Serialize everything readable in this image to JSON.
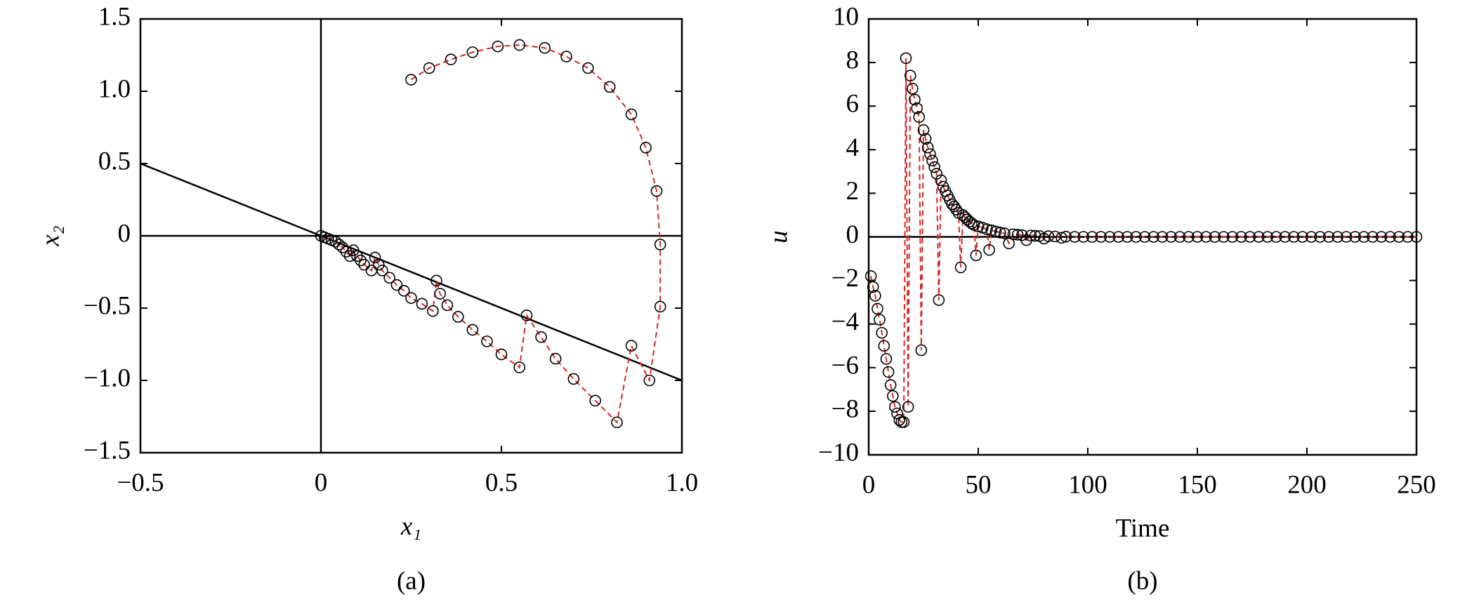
{
  "chart_data": [
    {
      "type": "scatter",
      "xlabel": "x₁",
      "ylabel": "x₂",
      "caption": "(a)",
      "xlim": [
        -0.5,
        1.0
      ],
      "ylim": [
        -1.5,
        1.5
      ],
      "xticks": [
        {
          "value": -0.5,
          "label": "−0.5"
        },
        0,
        0.5,
        {
          "value": 1.0,
          "label": "1.0"
        }
      ],
      "yticks": [
        {
          "value": -1.5,
          "label": "−1.5"
        },
        {
          "value": -1.0,
          "label": "−1.0"
        },
        {
          "value": -0.5,
          "label": "−0.5"
        },
        0,
        0.5,
        {
          "value": 1.0,
          "label": "1.0"
        },
        1.5
      ],
      "lines": [
        {
          "x": [
            -0.5,
            1.0
          ],
          "y": [
            0,
            0
          ]
        },
        {
          "x": [
            0,
            0
          ],
          "y": [
            -1.5,
            1.5
          ]
        },
        {
          "x": [
            -0.5,
            1.0
          ],
          "y": [
            0.5,
            -1.0
          ]
        }
      ],
      "series": [
        {
          "color": "#d62728",
          "x": [
            0.25,
            0.3,
            0.36,
            0.42,
            0.49,
            0.55,
            0.62,
            0.68,
            0.74,
            0.8,
            0.86,
            0.9,
            0.93,
            0.94,
            0.94,
            0.91,
            0.86,
            0.82,
            0.76,
            0.7,
            0.65,
            0.61,
            0.57,
            0.55,
            0.5,
            0.46,
            0.42,
            0.38,
            0.35,
            0.33,
            0.32,
            0.31,
            0.28,
            0.25,
            0.23,
            0.21,
            0.19,
            0.17,
            0.16,
            0.15,
            0.14,
            0.12,
            0.11,
            0.1,
            0.09,
            0.08,
            0.07,
            0.06,
            0.05,
            0.04,
            0.03,
            0.02,
            0.01,
            0
          ],
          "values": [
            1.08,
            1.16,
            1.22,
            1.27,
            1.31,
            1.32,
            1.3,
            1.24,
            1.16,
            1.03,
            0.84,
            0.61,
            0.31,
            -0.06,
            -0.49,
            -1.0,
            -0.76,
            -1.29,
            -1.14,
            -0.99,
            -0.85,
            -0.7,
            -0.55,
            -0.91,
            -0.82,
            -0.73,
            -0.65,
            -0.56,
            -0.48,
            -0.4,
            -0.31,
            -0.52,
            -0.47,
            -0.43,
            -0.38,
            -0.34,
            -0.29,
            -0.24,
            -0.2,
            -0.15,
            -0.24,
            -0.2,
            -0.17,
            -0.14,
            -0.1,
            -0.14,
            -0.11,
            -0.08,
            -0.06,
            -0.04,
            -0.03,
            -0.02,
            -0.01,
            0
          ]
        }
      ]
    },
    {
      "type": "scatter",
      "xlabel": "Time",
      "ylabel": "u",
      "caption": "(b)",
      "xlim": [
        0,
        250
      ],
      "ylim": [
        -10,
        10
      ],
      "xticks": [
        0,
        50,
        100,
        150,
        200,
        250
      ],
      "yticks": [
        {
          "value": -10,
          "label": "−10"
        },
        {
          "value": -8,
          "label": "−8"
        },
        {
          "value": -6,
          "label": "−6"
        },
        {
          "value": -4,
          "label": "−4"
        },
        {
          "value": -2,
          "label": "−2"
        },
        0,
        2,
        4,
        6,
        8,
        10
      ],
      "lines": [
        {
          "x": [
            0,
            250
          ],
          "y": [
            0,
            0
          ]
        }
      ],
      "series": [
        {
          "color": "#d62728",
          "x": [
            1,
            2,
            3,
            4,
            5,
            6,
            7,
            8,
            9,
            10,
            11,
            12,
            13,
            14,
            15,
            16,
            17,
            18,
            19,
            20,
            21,
            22,
            23,
            24,
            25,
            26,
            27,
            28,
            29,
            30,
            31,
            32,
            33,
            34,
            35,
            36,
            37,
            38,
            39,
            40,
            41,
            42,
            43,
            44,
            45,
            46,
            47,
            48,
            49,
            50,
            52,
            54,
            55,
            56,
            58,
            60,
            62,
            64,
            66,
            68,
            70,
            72,
            74,
            76,
            78,
            80,
            82,
            85,
            88,
            90,
            94,
            98,
            102,
            106,
            110,
            114,
            118,
            122,
            126,
            130,
            134,
            138,
            142,
            146,
            150,
            154,
            158,
            162,
            166,
            170,
            174,
            178,
            182,
            186,
            190,
            194,
            198,
            202,
            206,
            210,
            214,
            218,
            222,
            226,
            230,
            234,
            238,
            242,
            246,
            250
          ],
          "values": [
            -1.8,
            -2.3,
            -2.7,
            -3.3,
            -3.8,
            -4.4,
            -5.0,
            -5.6,
            -6.2,
            -6.8,
            -7.3,
            -7.8,
            -8.1,
            -8.4,
            -8.5,
            -8.5,
            8.2,
            -7.8,
            7.4,
            6.8,
            6.3,
            5.9,
            5.5,
            -5.2,
            4.9,
            4.5,
            4.1,
            3.8,
            3.5,
            3.2,
            2.9,
            -2.9,
            2.6,
            2.3,
            2.1,
            1.9,
            1.7,
            1.5,
            1.4,
            1.25,
            1.1,
            -1.4,
            1.0,
            0.9,
            0.8,
            0.7,
            0.62,
            0.55,
            -0.85,
            0.48,
            0.42,
            0.35,
            -0.6,
            0.3,
            0.25,
            0.2,
            0.16,
            -0.3,
            0.12,
            0.1,
            0.08,
            -0.15,
            0.06,
            0.05,
            0.04,
            -0.08,
            0.03,
            0.02,
            -0.04,
            0.01,
            0,
            0,
            0,
            0,
            0,
            0,
            0,
            0,
            0,
            0,
            0,
            0,
            0,
            0,
            0,
            0,
            0,
            0,
            0,
            0,
            0,
            0,
            0,
            0,
            0,
            0,
            0,
            0,
            0,
            0,
            0,
            0,
            0,
            0,
            0,
            0,
            0,
            0,
            0,
            0
          ]
        }
      ]
    }
  ]
}
